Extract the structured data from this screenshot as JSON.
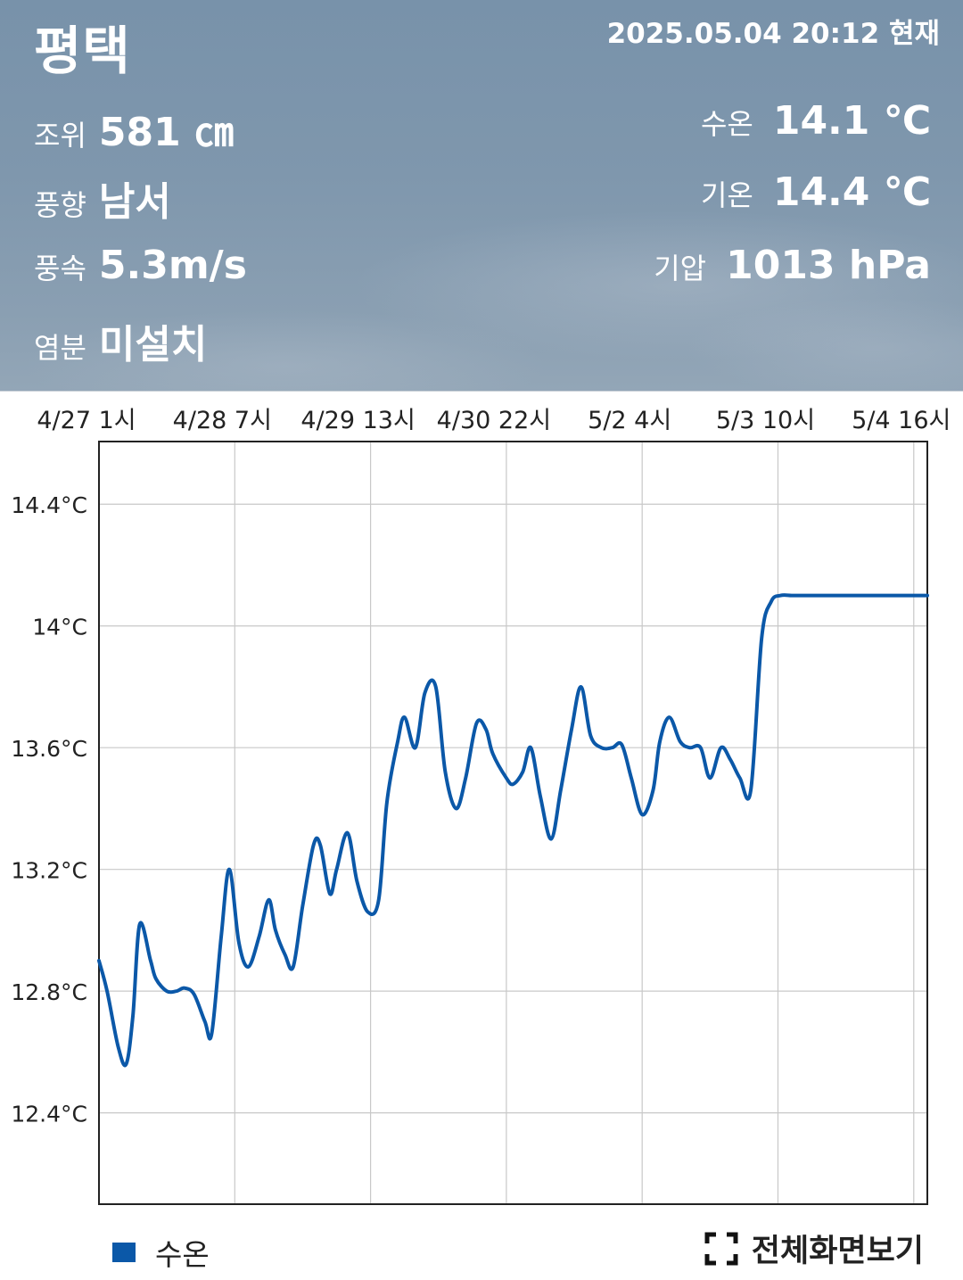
{
  "header": {
    "station": "평택",
    "timestamp": "2025.05.04 20:12 현재",
    "left": [
      {
        "label": "조위",
        "value": "581 ㎝"
      },
      {
        "label": "풍향",
        "value": "남서"
      },
      {
        "label": "풍속",
        "value": "5.3m/s"
      },
      {
        "label": "염분",
        "value": "미설치"
      }
    ],
    "right": [
      {
        "label": "수온",
        "value": "14.1 ℃"
      },
      {
        "label": "기온",
        "value": "14.4 ℃"
      },
      {
        "label": "기압",
        "value": "1013 hPa"
      }
    ]
  },
  "colors": {
    "series": "#0b58a8",
    "grid": "#c8c8c8",
    "axis": "#222222"
  },
  "chart_data": {
    "type": "line",
    "x_ticks": [
      "4/27 1시",
      "4/28 7시",
      "4/29 13시",
      "4/30 22시",
      "5/2 4시",
      "5/3 10시",
      "5/4 16시"
    ],
    "y_ticks": [
      {
        "value": 14.4,
        "label": "14.4°C"
      },
      {
        "value": 14.0,
        "label": "14°C"
      },
      {
        "value": 13.6,
        "label": "13.6°C"
      },
      {
        "value": 13.2,
        "label": "13.2°C"
      },
      {
        "value": 12.8,
        "label": "12.8°C"
      },
      {
        "value": 12.4,
        "label": "12.4°C"
      }
    ],
    "ylim": [
      12.1,
      14.6
    ],
    "xlim": [
      0,
      6.1
    ],
    "grid": true,
    "series": [
      {
        "name": "수온",
        "x": [
          0,
          0.06,
          0.14,
          0.2,
          0.25,
          0.3,
          0.38,
          0.42,
          0.5,
          0.57,
          0.63,
          0.7,
          0.78,
          0.83,
          0.9,
          0.96,
          1.03,
          1.1,
          1.18,
          1.25,
          1.3,
          1.37,
          1.43,
          1.5,
          1.58,
          1.63,
          1.7,
          1.75,
          1.83,
          1.9,
          1.98,
          2.06,
          2.12,
          2.2,
          2.25,
          2.33,
          2.4,
          2.48,
          2.55,
          2.63,
          2.7,
          2.78,
          2.85,
          2.9,
          3.0,
          3.05,
          3.12,
          3.18,
          3.25,
          3.33,
          3.4,
          3.48,
          3.55,
          3.62,
          3.7,
          3.78,
          3.85,
          3.92,
          4.0,
          4.08,
          4.13,
          4.2,
          4.28,
          4.35,
          4.43,
          4.5,
          4.58,
          4.65,
          4.72,
          4.8,
          4.88,
          4.95,
          5.02,
          5.1,
          5.18,
          5.25,
          5.33,
          5.4,
          5.48,
          5.55,
          5.63,
          5.7,
          5.76,
          5.83,
          5.9,
          5.96,
          6.02,
          6.06,
          6.1
        ],
        "values": [
          12.9,
          12.8,
          12.62,
          12.56,
          12.72,
          13.02,
          12.9,
          12.84,
          12.8,
          12.8,
          12.81,
          12.79,
          12.7,
          12.66,
          12.98,
          13.2,
          12.96,
          12.88,
          12.98,
          13.1,
          13.0,
          12.92,
          12.88,
          13.08,
          13.28,
          13.28,
          13.12,
          13.2,
          13.32,
          13.16,
          13.06,
          13.1,
          13.42,
          13.62,
          13.7,
          13.6,
          13.78,
          13.8,
          13.52,
          13.4,
          13.5,
          13.68,
          13.66,
          13.58,
          13.5,
          13.48,
          13.52,
          13.6,
          13.44,
          13.3,
          13.46,
          13.66,
          13.8,
          13.64,
          13.6,
          13.6,
          13.61,
          13.5,
          13.38,
          13.46,
          13.62,
          13.7,
          13.62,
          13.6,
          13.6,
          13.5,
          13.6,
          13.56,
          13.5,
          13.46,
          13.96,
          14.08,
          14.1,
          14.1,
          14.1,
          14.1,
          14.1,
          14.1,
          14.1,
          14.1,
          14.1,
          14.1,
          14.1,
          14.1,
          14.1,
          14.1,
          14.1,
          14.1,
          14.1
        ]
      }
    ]
  },
  "footer": {
    "legend_label": "수온",
    "fullscreen_label": "전체화면보기"
  }
}
